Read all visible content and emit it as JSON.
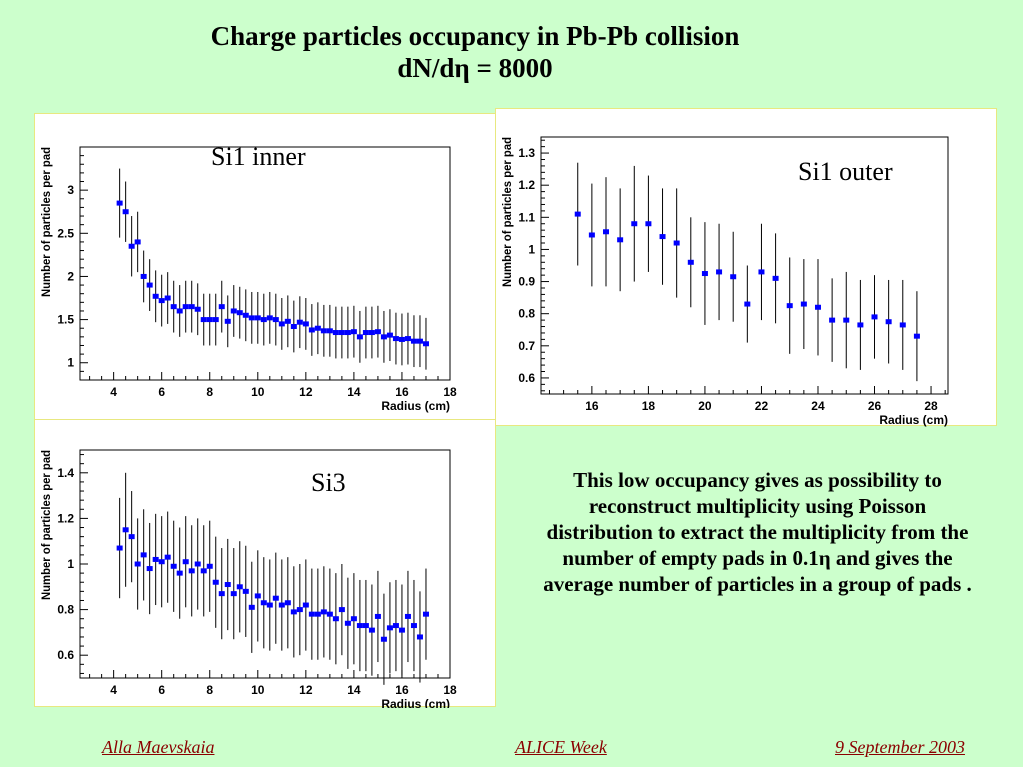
{
  "slide": {
    "title_line1": "Charge particles occupancy in Pb-Pb collision",
    "title_line2": "dN/dη  = 8000",
    "body": "This low occupancy gives as possibility to reconstruct multiplicity using Poisson distribution to extract the multiplicity from the number of empty pads in 0.1η and gives the average number of particles in a group of pads .",
    "footer_left": "Alla Maevskaia",
    "footer_center": "ALICE Week",
    "footer_right": "9 September 2003",
    "colors": {
      "background": "#ccffcc",
      "marker": "#0000ff",
      "footer": "#8b0000"
    }
  },
  "chart_data": [
    {
      "type": "scatter",
      "label": "Si1 inner",
      "xlabel": "Radius (cm)",
      "ylabel": "Number of particles per pad",
      "xlim": [
        2.6,
        18
      ],
      "ylim": [
        0.8,
        3.5
      ],
      "xticks": [
        "4",
        "6",
        "8",
        "10",
        "12",
        "14",
        "16",
        "18"
      ],
      "yticks": [
        "1",
        "1.5",
        "2",
        "2.5",
        "3"
      ],
      "xtick_values": [
        4,
        6,
        8,
        10,
        12,
        14,
        16,
        18
      ],
      "ytick_values": [
        1,
        1.5,
        2,
        2.5,
        3
      ],
      "series": [
        {
          "x": [
            4.25,
            4.5,
            4.75,
            5.0,
            5.25,
            5.5,
            5.75,
            6.0,
            6.25,
            6.5,
            6.75,
            7.0,
            7.25,
            7.5,
            7.75,
            8.0,
            8.25,
            8.5,
            8.75,
            9.0,
            9.25,
            9.5,
            9.75,
            10.0,
            10.25,
            10.5,
            10.75,
            11.0,
            11.25,
            11.5,
            11.75,
            12.0,
            12.25,
            12.5,
            12.75,
            13.0,
            13.25,
            13.5,
            13.75,
            14.0,
            14.25,
            14.5,
            14.75,
            15.0,
            15.25,
            15.5,
            15.75,
            16.0,
            16.25,
            16.5,
            16.75,
            17.0
          ],
          "y": [
            2.85,
            2.75,
            2.35,
            2.4,
            2.0,
            1.9,
            1.77,
            1.72,
            1.75,
            1.65,
            1.6,
            1.65,
            1.65,
            1.62,
            1.5,
            1.5,
            1.5,
            1.65,
            1.48,
            1.6,
            1.58,
            1.55,
            1.52,
            1.52,
            1.5,
            1.52,
            1.5,
            1.45,
            1.48,
            1.42,
            1.47,
            1.45,
            1.38,
            1.4,
            1.37,
            1.37,
            1.35,
            1.35,
            1.35,
            1.36,
            1.3,
            1.35,
            1.35,
            1.36,
            1.3,
            1.32,
            1.28,
            1.27,
            1.28,
            1.25,
            1.25,
            1.22
          ],
          "err": [
            0.4,
            0.35,
            0.35,
            0.35,
            0.3,
            0.3,
            0.3,
            0.3,
            0.3,
            0.3,
            0.3,
            0.3,
            0.3,
            0.3,
            0.3,
            0.3,
            0.3,
            0.3,
            0.3,
            0.3,
            0.3,
            0.3,
            0.3,
            0.3,
            0.3,
            0.3,
            0.3,
            0.3,
            0.3,
            0.3,
            0.3,
            0.3,
            0.3,
            0.3,
            0.3,
            0.3,
            0.3,
            0.3,
            0.3,
            0.3,
            0.3,
            0.3,
            0.3,
            0.3,
            0.3,
            0.3,
            0.3,
            0.3,
            0.3,
            0.3,
            0.3,
            0.3
          ]
        }
      ]
    },
    {
      "type": "scatter",
      "label": "Si1 outer",
      "xlabel": "Radius (cm)",
      "ylabel": "Number of particles per pad",
      "xlim": [
        14.2,
        28.6
      ],
      "ylim": [
        0.55,
        1.35
      ],
      "xticks": [
        "16",
        "18",
        "20",
        "22",
        "24",
        "26",
        "28"
      ],
      "yticks": [
        "0.6",
        "0.7",
        "0.8",
        "0.9",
        "1",
        "1.1",
        "1.2",
        "1.3"
      ],
      "xtick_values": [
        16,
        18,
        20,
        22,
        24,
        26,
        28
      ],
      "ytick_values": [
        0.6,
        0.7,
        0.8,
        0.9,
        1.0,
        1.1,
        1.2,
        1.3
      ],
      "series": [
        {
          "x": [
            15.5,
            16.0,
            16.5,
            17.0,
            17.5,
            18.0,
            18.5,
            19.0,
            19.5,
            20.0,
            20.5,
            21.0,
            21.5,
            22.0,
            22.5,
            23.0,
            23.5,
            24.0,
            24.5,
            25.0,
            25.5,
            26.0,
            26.5,
            27.0,
            27.5
          ],
          "y": [
            1.11,
            1.045,
            1.055,
            1.03,
            1.08,
            1.08,
            1.04,
            1.02,
            0.96,
            0.925,
            0.93,
            0.915,
            0.83,
            0.93,
            0.91,
            0.825,
            0.83,
            0.82,
            0.78,
            0.78,
            0.765,
            0.79,
            0.775,
            0.765,
            0.73
          ],
          "err": [
            0.16,
            0.16,
            0.17,
            0.16,
            0.18,
            0.15,
            0.15,
            0.17,
            0.14,
            0.16,
            0.15,
            0.14,
            0.12,
            0.15,
            0.14,
            0.15,
            0.14,
            0.15,
            0.13,
            0.15,
            0.14,
            0.13,
            0.13,
            0.14,
            0.14
          ]
        }
      ]
    },
    {
      "type": "scatter",
      "label": "Si3",
      "xlabel": "Radius (cm)",
      "ylabel": "Number of particles per pad",
      "xlim": [
        2.6,
        18
      ],
      "ylim": [
        0.5,
        1.5
      ],
      "xticks": [
        "4",
        "6",
        "8",
        "10",
        "12",
        "14",
        "16",
        "18"
      ],
      "yticks": [
        "0.6",
        "0.8",
        "1",
        "1.2",
        "1.4"
      ],
      "xtick_values": [
        4,
        6,
        8,
        10,
        12,
        14,
        16,
        18
      ],
      "ytick_values": [
        0.6,
        0.8,
        1.0,
        1.2,
        1.4
      ],
      "series": [
        {
          "x": [
            4.25,
            4.5,
            4.75,
            5.0,
            5.25,
            5.5,
            5.75,
            6.0,
            6.25,
            6.5,
            6.75,
            7.0,
            7.25,
            7.5,
            7.75,
            8.0,
            8.25,
            8.5,
            8.75,
            9.0,
            9.25,
            9.5,
            9.75,
            10.0,
            10.25,
            10.5,
            10.75,
            11.0,
            11.25,
            11.5,
            11.75,
            12.0,
            12.25,
            12.5,
            12.75,
            13.0,
            13.25,
            13.5,
            13.75,
            14.0,
            14.25,
            14.5,
            14.75,
            15.0,
            15.25,
            15.5,
            15.75,
            16.0,
            16.25,
            16.5,
            16.75,
            17.0
          ],
          "y": [
            1.07,
            1.15,
            1.12,
            1.0,
            1.04,
            0.98,
            1.02,
            1.01,
            1.03,
            0.99,
            0.96,
            1.01,
            0.97,
            1.0,
            0.97,
            0.99,
            0.92,
            0.87,
            0.91,
            0.87,
            0.9,
            0.88,
            0.81,
            0.86,
            0.83,
            0.82,
            0.85,
            0.82,
            0.83,
            0.79,
            0.8,
            0.82,
            0.78,
            0.78,
            0.79,
            0.78,
            0.76,
            0.8,
            0.74,
            0.76,
            0.73,
            0.73,
            0.71,
            0.77,
            0.67,
            0.72,
            0.73,
            0.71,
            0.77,
            0.73,
            0.68,
            0.78
          ],
          "err": [
            0.22,
            0.25,
            0.2,
            0.2,
            0.2,
            0.2,
            0.2,
            0.2,
            0.2,
            0.2,
            0.2,
            0.2,
            0.2,
            0.2,
            0.2,
            0.2,
            0.2,
            0.2,
            0.2,
            0.2,
            0.2,
            0.2,
            0.2,
            0.2,
            0.2,
            0.2,
            0.2,
            0.2,
            0.2,
            0.2,
            0.2,
            0.2,
            0.2,
            0.2,
            0.2,
            0.2,
            0.2,
            0.2,
            0.2,
            0.2,
            0.2,
            0.2,
            0.2,
            0.2,
            0.2,
            0.2,
            0.2,
            0.2,
            0.2,
            0.2,
            0.2,
            0.2
          ]
        }
      ]
    }
  ]
}
